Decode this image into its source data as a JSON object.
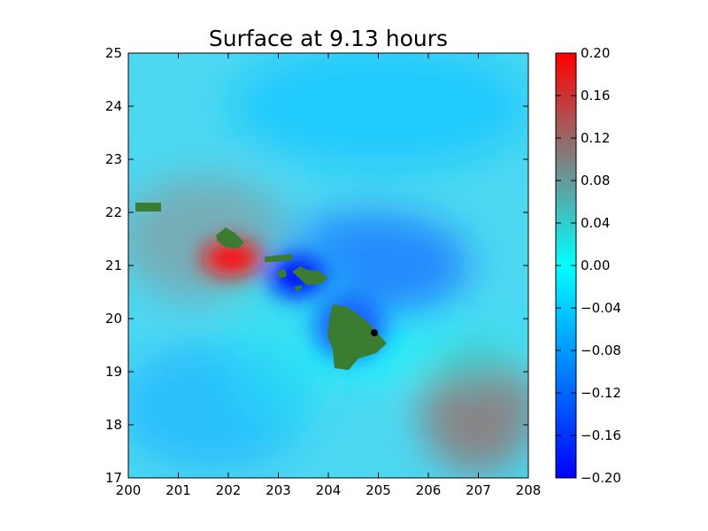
{
  "chart_data": {
    "type": "heatmap",
    "title": "Surface at 9.13 hours",
    "xlabel": "",
    "ylabel": "",
    "xlim": [
      200,
      208
    ],
    "ylim": [
      17,
      25
    ],
    "x_ticks": [
      "200",
      "201",
      "202",
      "203",
      "204",
      "205",
      "206",
      "207",
      "208"
    ],
    "y_ticks": [
      "17",
      "18",
      "19",
      "20",
      "21",
      "22",
      "23",
      "24",
      "25"
    ],
    "grid": false,
    "colorbar": {
      "vmin": -0.2,
      "vmax": 0.2,
      "ticks": [
        "0.20",
        "0.16",
        "0.12",
        "0.08",
        "0.04",
        "0.00",
        "−0.04",
        "−0.08",
        "−0.12",
        "−0.16",
        "−0.20"
      ],
      "colors": [
        "#0000ff",
        "#00ffff",
        "#808080",
        "#ff0000"
      ]
    },
    "land_color": "#3a7d32",
    "features": [
      {
        "name": "surface elevation anomaly (red)",
        "center": [
          202.3,
          21.1
        ],
        "value": 0.2
      },
      {
        "name": "surface elevation anomaly (blue)",
        "center": [
          203.3,
          20.8
        ],
        "value": -0.2
      },
      {
        "name": "surface elevation anomaly (gray)",
        "center": [
          207.0,
          18.2
        ],
        "value": 0.1
      },
      {
        "name": "surface elevation anomaly (gray)",
        "center": [
          201.7,
          21.5
        ],
        "value": 0.1
      },
      {
        "name": "marker point",
        "center": [
          204.95,
          19.73
        ],
        "color": "#000000"
      }
    ]
  }
}
